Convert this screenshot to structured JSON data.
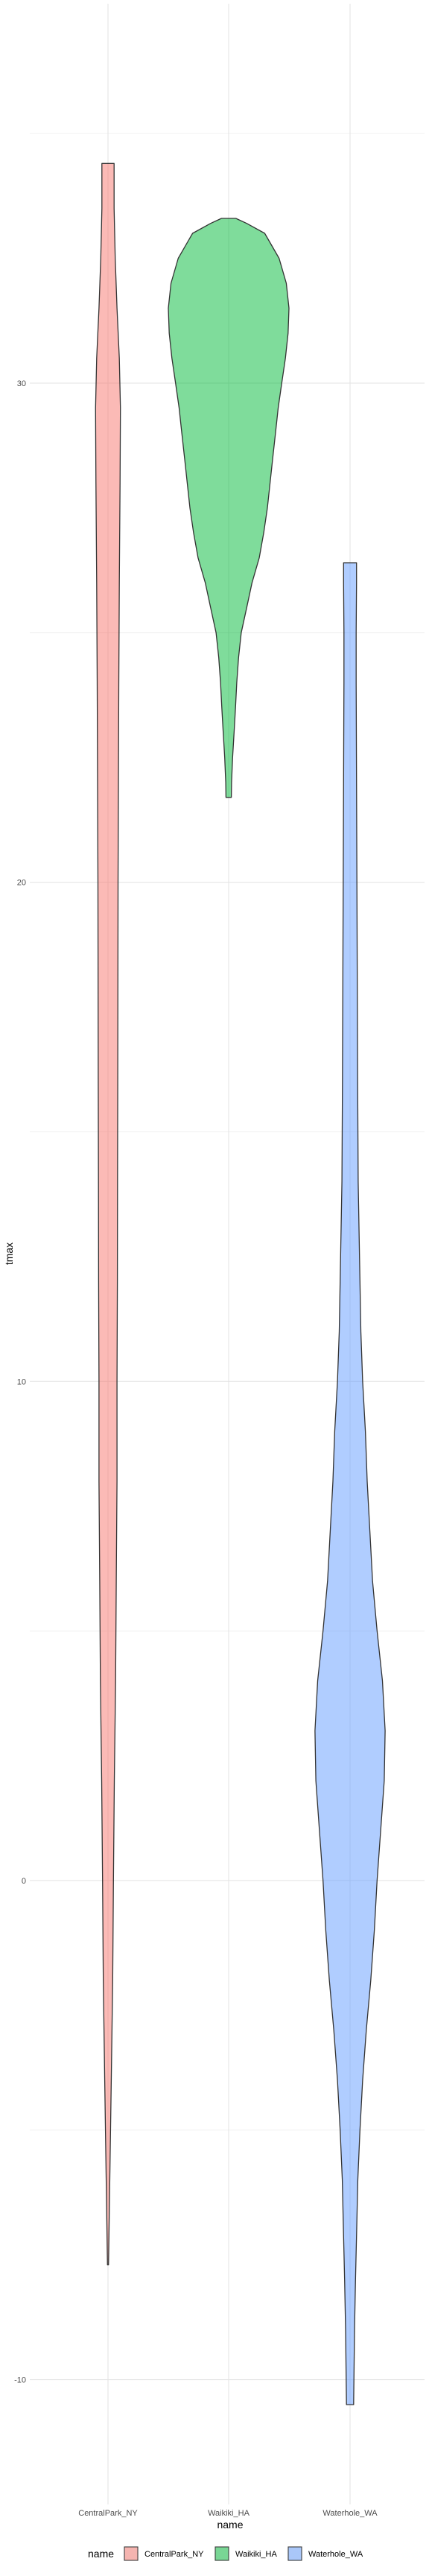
{
  "chart_data": {
    "type": "violin",
    "xlabel": "name",
    "ylabel": "tmax",
    "ylim": [
      -12.5,
      37.6
    ],
    "y_ticks": [
      -10,
      0,
      10,
      20,
      30
    ],
    "y_tick_labels": [
      "-10",
      "0",
      "10",
      "20",
      "30"
    ],
    "grid": true,
    "legend": {
      "title": "name",
      "position": "bottom",
      "entries": [
        "CentralPark_NY",
        "Waikiki_HA",
        "Waterhole_WA"
      ]
    },
    "categories": [
      "CentralPark_NY",
      "Waikiki_HA",
      "Waterhole_WA"
    ],
    "series": [
      {
        "name": "CentralPark_NY",
        "color": "#F8766D",
        "y_min": -7.7,
        "y_max": 34.4,
        "density_profile": [
          [
            -7.7,
            0.3
          ],
          [
            -6.0,
            1.0
          ],
          [
            -4.0,
            1.8
          ],
          [
            -2.0,
            2.6
          ],
          [
            0.0,
            3.0
          ],
          [
            2.0,
            3.5
          ],
          [
            4.0,
            4.2
          ],
          [
            6.0,
            4.6
          ],
          [
            8.0,
            5.0
          ],
          [
            10.0,
            5.0
          ],
          [
            12.0,
            5.2
          ],
          [
            14.0,
            5.3
          ],
          [
            16.0,
            5.4
          ],
          [
            18.0,
            5.5
          ],
          [
            20.0,
            5.6
          ],
          [
            22.0,
            5.8
          ],
          [
            24.0,
            6.0
          ],
          [
            26.0,
            6.3
          ],
          [
            28.0,
            6.7
          ],
          [
            29.5,
            6.9
          ],
          [
            30.5,
            6.3
          ],
          [
            31.5,
            5.0
          ],
          [
            32.5,
            4.0
          ],
          [
            33.5,
            3.4
          ],
          [
            34.4,
            3.4
          ]
        ]
      },
      {
        "name": "Waikiki_HA",
        "color": "#00BA38",
        "y_min": 21.7,
        "y_max": 33.3,
        "density_profile": [
          [
            21.7,
            1.5
          ],
          [
            22.0,
            1.6
          ],
          [
            22.5,
            2.2
          ],
          [
            23.0,
            3.0
          ],
          [
            23.5,
            3.8
          ],
          [
            24.0,
            4.5
          ],
          [
            24.5,
            5.5
          ],
          [
            25.0,
            7.0
          ],
          [
            25.5,
            10.0
          ],
          [
            26.0,
            13.0
          ],
          [
            26.5,
            17.0
          ],
          [
            27.0,
            19.5
          ],
          [
            27.5,
            21.5
          ],
          [
            28.0,
            23.0
          ],
          [
            28.5,
            24.5
          ],
          [
            29.0,
            26.0
          ],
          [
            29.5,
            27.5
          ],
          [
            30.0,
            29.5
          ],
          [
            30.5,
            31.5
          ],
          [
            31.0,
            33.0
          ],
          [
            31.5,
            33.5
          ],
          [
            32.0,
            32.0
          ],
          [
            32.5,
            28.0
          ],
          [
            33.0,
            20.0
          ],
          [
            33.2,
            10.0
          ],
          [
            33.3,
            4.0
          ]
        ]
      },
      {
        "name": "Waterhole_WA",
        "color": "#619CFF",
        "y_min": -10.5,
        "y_max": 26.4,
        "density_profile": [
          [
            -10.5,
            2.0
          ],
          [
            -9.0,
            2.5
          ],
          [
            -8.0,
            3.0
          ],
          [
            -7.0,
            3.7
          ],
          [
            -6.0,
            4.3
          ],
          [
            -5.0,
            5.5
          ],
          [
            -4.0,
            7.0
          ],
          [
            -3.0,
            9.0
          ],
          [
            -2.0,
            11.5
          ],
          [
            -1.0,
            13.5
          ],
          [
            0.0,
            15.0
          ],
          [
            1.0,
            17.0
          ],
          [
            2.0,
            19.0
          ],
          [
            3.0,
            19.5
          ],
          [
            4.0,
            18.0
          ],
          [
            5.0,
            15.0
          ],
          [
            6.0,
            12.5
          ],
          [
            7.0,
            11.0
          ],
          [
            8.0,
            9.5
          ],
          [
            9.0,
            8.5
          ],
          [
            10.0,
            7.0
          ],
          [
            11.0,
            6.0
          ],
          [
            12.0,
            5.5
          ],
          [
            13.0,
            5.0
          ],
          [
            14.0,
            4.5
          ],
          [
            16.0,
            4.2
          ],
          [
            18.0,
            4.0
          ],
          [
            20.0,
            3.8
          ],
          [
            22.0,
            3.6
          ],
          [
            24.0,
            3.4
          ],
          [
            25.0,
            3.4
          ],
          [
            26.0,
            3.6
          ],
          [
            26.4,
            3.6
          ]
        ]
      }
    ]
  }
}
